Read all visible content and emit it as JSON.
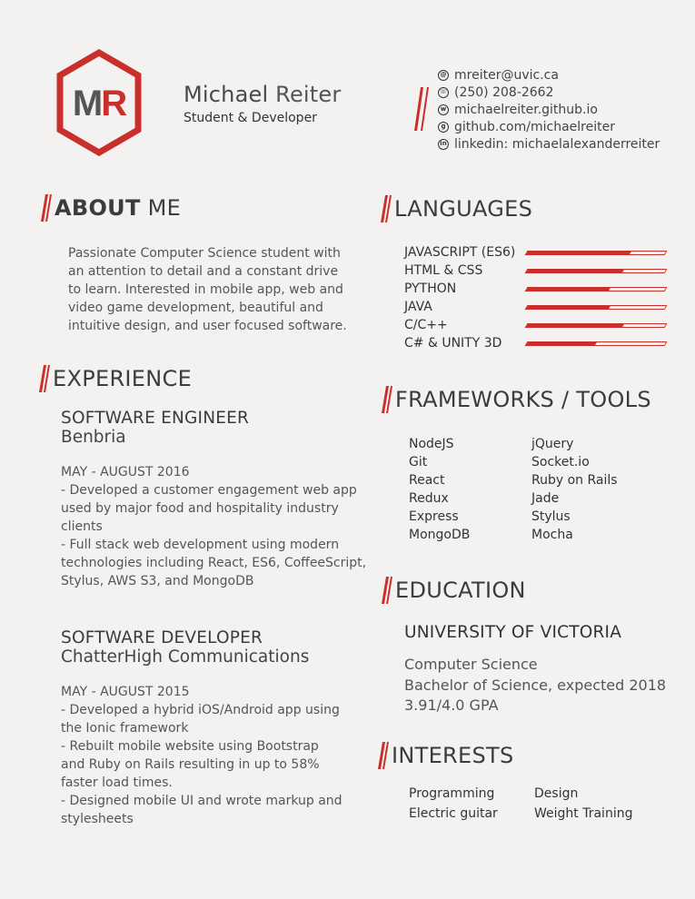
{
  "header": {
    "initials": "MR",
    "first_name": "Michael",
    "last_name": "Reiter",
    "role": "Student & Developer"
  },
  "contact": [
    {
      "icon": "email-icon",
      "glyph": "@",
      "text": "mreiter@uvic.ca"
    },
    {
      "icon": "phone-icon",
      "glyph": "☏",
      "text": "(250) 208-2662"
    },
    {
      "icon": "website-icon",
      "glyph": "w",
      "text": "michaelreiter.github.io"
    },
    {
      "icon": "github-icon",
      "glyph": "g",
      "text": "github.com/michaelreiter"
    },
    {
      "icon": "linkedin-icon",
      "glyph": "in",
      "text": "linkedin: michaelalexanderreiter"
    }
  ],
  "about": {
    "heading_bold": "ABOUT",
    "heading_light": " ME",
    "text": "Passionate Computer Science student with an attention to detail and a constant drive to learn. Interested in mobile app, web and video game development, beautiful and intuitive design, and user focused software."
  },
  "experience": {
    "heading": "EXPERIENCE",
    "jobs": [
      {
        "title": "SOFTWARE ENGINEER",
        "company": "Benbria",
        "lines": [
          "MAY - AUGUST 2016",
          "- Developed a customer engagement web app",
          "used by major food and hospitality industry",
          "clients",
          "- Full stack web development using modern",
          "technologies including React, ES6, CoffeeScript,",
          "Stylus, AWS S3, and MongoDB"
        ]
      },
      {
        "title": "SOFTWARE DEVELOPER",
        "company": "ChatterHigh Communications",
        "lines": [
          "MAY - AUGUST 2015",
          "- Developed a hybrid iOS/Android app using",
          "the Ionic framework",
          "- Rebuilt mobile website using Bootstrap",
          "and Ruby on Rails resulting in up to 58%",
          "faster load times.",
          "- Designed mobile UI and wrote markup and",
          "stylesheets"
        ]
      }
    ]
  },
  "languages": {
    "heading": "LANGUAGES",
    "items": [
      {
        "name": "JAVASCRIPT (ES6)",
        "level": 0.75
      },
      {
        "name": "HTML & CSS",
        "level": 0.7
      },
      {
        "name": "PYTHON",
        "level": 0.6
      },
      {
        "name": "JAVA",
        "level": 0.6
      },
      {
        "name": "C/C++",
        "level": 0.7
      },
      {
        "name": "C# & UNITY 3D",
        "level": 0.5
      }
    ],
    "bar_color": "#c9302c"
  },
  "frameworks": {
    "heading": "FRAMEWORKS / TOOLS",
    "col1": [
      "NodeJS",
      "Git",
      "React",
      "Redux",
      "Express",
      "MongoDB"
    ],
    "col2": [
      "jQuery",
      "Socket.io",
      "Ruby on Rails",
      "Jade",
      "Stylus",
      "Mocha"
    ]
  },
  "education": {
    "heading": "EDUCATION",
    "school": "UNIVERSITY OF VICTORIA",
    "lines": [
      "Computer Science",
      "Bachelor of Science, expected 2018",
      "3.91/4.0 GPA"
    ]
  },
  "interests": {
    "heading": "INTERESTS",
    "col1": [
      "Programming",
      "Electric guitar"
    ],
    "col2": [
      "Design",
      "Weight Training"
    ]
  },
  "colors": {
    "accent": "#c9302c",
    "text": "#4a4a4a",
    "background": "#f3f2f0"
  }
}
